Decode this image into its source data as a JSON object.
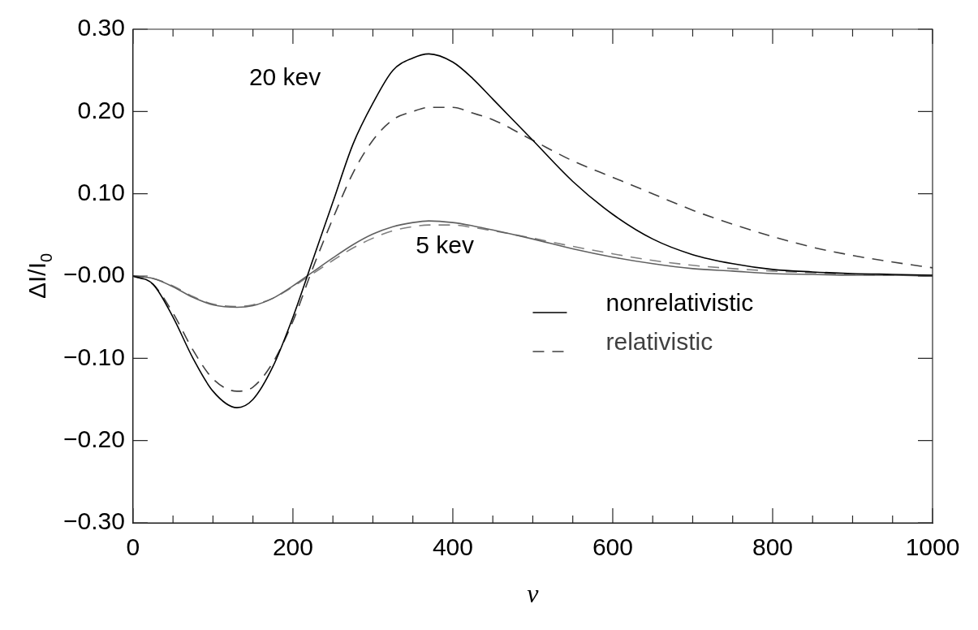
{
  "chart_data": {
    "type": "line",
    "xlabel": "ν",
    "ylabel": "ΔI/I$_{0}$",
    "x": [
      0,
      25,
      50,
      75,
      100,
      130,
      150,
      175,
      200,
      225,
      250,
      275,
      300,
      325,
      350,
      370,
      400,
      425,
      450,
      500,
      550,
      600,
      650,
      700,
      750,
      800,
      850,
      900,
      950,
      1000
    ],
    "series": [
      {
        "name": "nonrelativistic",
        "color": "#000000",
        "line_style": "solid",
        "values": [
          0,
          -0.01,
          -0.05,
          -0.1,
          -0.14,
          -0.16,
          -0.15,
          -0.11,
          -0.05,
          0.02,
          0.09,
          0.16,
          0.21,
          0.25,
          0.265,
          0.27,
          0.26,
          0.24,
          0.215,
          0.165,
          0.115,
          0.075,
          0.045,
          0.026,
          0.015,
          0.008,
          0.005,
          0.003,
          0.002,
          0.001
        ]
      },
      {
        "name": "relativistic",
        "color": "#404040",
        "line_style": "dashed",
        "values": [
          0,
          -0.01,
          -0.045,
          -0.09,
          -0.125,
          -0.14,
          -0.135,
          -0.105,
          -0.055,
          0.01,
          0.07,
          0.125,
          0.165,
          0.19,
          0.2,
          0.205,
          0.205,
          0.198,
          0.19,
          0.165,
          0.14,
          0.12,
          0.1,
          0.08,
          0.063,
          0.048,
          0.035,
          0.025,
          0.017,
          0.01
        ]
      },
      {
        "color": "#606060",
        "line_style": "solid",
        "values": [
          0,
          -0.003,
          -0.013,
          -0.026,
          -0.035,
          -0.038,
          -0.036,
          -0.027,
          -0.012,
          0.005,
          0.022,
          0.038,
          0.051,
          0.06,
          0.065,
          0.067,
          0.065,
          0.061,
          0.056,
          0.045,
          0.033,
          0.023,
          0.015,
          0.009,
          0.006,
          0.003,
          0.002,
          0.001,
          0.001,
          0
        ]
      },
      {
        "color": "#808080",
        "line_style": "dashed",
        "values": [
          0,
          -0.003,
          -0.012,
          -0.025,
          -0.034,
          -0.037,
          -0.035,
          -0.027,
          -0.013,
          0.003,
          0.019,
          0.034,
          0.046,
          0.055,
          0.06,
          0.062,
          0.062,
          0.059,
          0.055,
          0.046,
          0.036,
          0.027,
          0.019,
          0.013,
          0.009,
          0.006,
          0.004,
          0.002,
          0.001,
          0.001
        ]
      }
    ],
    "xlim": [
      0,
      1000
    ],
    "xticks": [
      0,
      200,
      400,
      600,
      800,
      1000
    ],
    "ylim": [
      -0.3,
      0.3
    ],
    "yticks": [
      {
        "value": -0.3,
        "label": "−0.30"
      },
      {
        "value": -0.2,
        "label": "−0.20"
      },
      {
        "value": -0.1,
        "label": "−0.10"
      },
      {
        "value": 0,
        "label": "−0.00"
      },
      {
        "value": 0.1,
        "label": "0.10"
      },
      {
        "value": 0.2,
        "label": "0.20"
      },
      {
        "value": 0.3,
        "label": "0.30"
      }
    ],
    "annotations": [
      "20 kev",
      "5 kev"
    ],
    "legend": "right",
    "grid": false,
    "marker": "none"
  }
}
